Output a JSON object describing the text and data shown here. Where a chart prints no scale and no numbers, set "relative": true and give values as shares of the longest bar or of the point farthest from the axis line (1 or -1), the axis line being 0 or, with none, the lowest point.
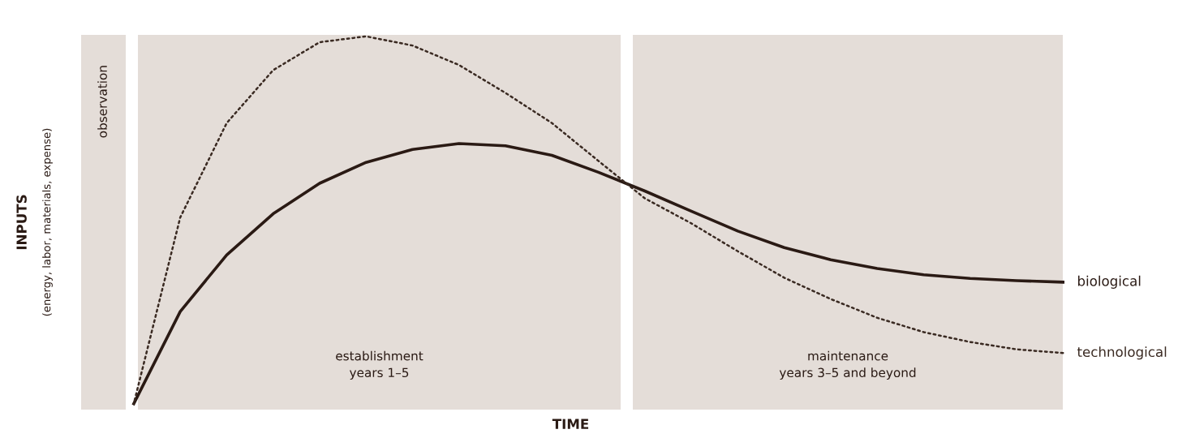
{
  "chart_data": {
    "type": "line",
    "relative": true,
    "xlabel": "TIME",
    "annotations": [
      "INPUTS",
      "(energy, labor, materials, expense)",
      "observation",
      "establishment\nyears 1–5",
      "maintenance\nyears 3–5 and beyond"
    ],
    "categories": [
      null,
      null,
      null,
      null,
      null,
      null,
      null,
      null,
      null,
      null,
      null,
      null,
      null,
      null,
      null,
      null,
      null,
      null,
      null,
      null,
      null
    ],
    "series": [
      {
        "name": "biological",
        "color": "#2a1a14",
        "line_style": "solid",
        "values": [
          0,
          0.251,
          0.405,
          0.517,
          0.6,
          0.657,
          0.692,
          0.708,
          0.702,
          0.676,
          0.63,
          0.579,
          0.524,
          0.47,
          0.425,
          0.392,
          0.368,
          0.351,
          0.341,
          0.335,
          0.331
        ]
      },
      {
        "name": "technological",
        "color": "#3a2a22",
        "line_style": "dotted",
        "values": [
          0,
          0.507,
          0.764,
          0.908,
          0.984,
          1.0,
          0.975,
          0.922,
          0.846,
          0.764,
          0.661,
          0.559,
          0.491,
          0.415,
          0.343,
          0.285,
          0.234,
          0.195,
          0.168,
          0.148,
          0.138
        ]
      }
    ]
  }
}
